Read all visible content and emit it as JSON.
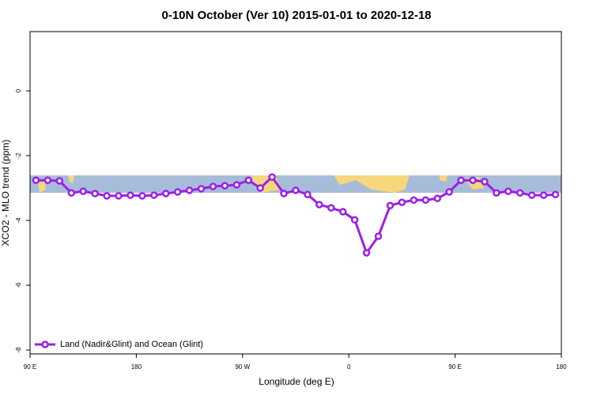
{
  "chart_data": {
    "type": "line",
    "title": "0-10N October (Ver 10)   2015-01-01 to 2020-12-18",
    "x_label": "Longitude (deg E)",
    "y_label": "XCO2 - MLO trend (ppm)",
    "x": [
      95,
      105,
      115,
      125,
      135,
      145,
      155,
      165,
      175,
      185,
      195,
      205,
      215,
      225,
      235,
      245,
      255,
      265,
      275,
      285,
      295,
      305,
      315,
      325,
      335,
      345,
      355,
      365,
      375,
      385,
      395,
      405,
      415,
      425,
      435,
      445,
      455,
      465,
      475,
      485,
      495,
      505,
      515,
      525,
      535
    ],
    "series": [
      {
        "name": "Land (Nadir&Glint) and Ocean (Glint)",
        "color": "#9b1fe8",
        "values": [
          -2.76,
          -2.76,
          -2.78,
          -3.15,
          -3.1,
          -3.17,
          -3.24,
          -3.24,
          -3.22,
          -3.24,
          -3.22,
          -3.17,
          -3.12,
          -3.07,
          -3.02,
          -2.95,
          -2.93,
          -2.9,
          -2.76,
          -3.0,
          -2.66,
          -3.17,
          -3.07,
          -3.2,
          -3.51,
          -3.61,
          -3.73,
          -3.98,
          -5.0,
          -4.49,
          -3.54,
          -3.44,
          -3.37,
          -3.37,
          -3.32,
          -3.12,
          -2.76,
          -2.76,
          -2.8,
          -3.15,
          -3.1,
          -3.15,
          -3.22,
          -3.22,
          -3.2
        ]
      }
    ],
    "xlim": [
      90,
      540
    ],
    "xticks": [
      {
        "value": 90,
        "label": "90 E"
      },
      {
        "value": 180,
        "label": "180"
      },
      {
        "value": 270,
        "label": "90 W"
      },
      {
        "value": 360,
        "label": "0"
      },
      {
        "value": 450,
        "label": "90 E"
      },
      {
        "value": 540,
        "label": "180"
      }
    ],
    "ylim": [
      -8.12,
      1.83
    ],
    "yticks": [
      0,
      -2,
      -4,
      -6,
      -8
    ],
    "legend": "bottom-left"
  }
}
